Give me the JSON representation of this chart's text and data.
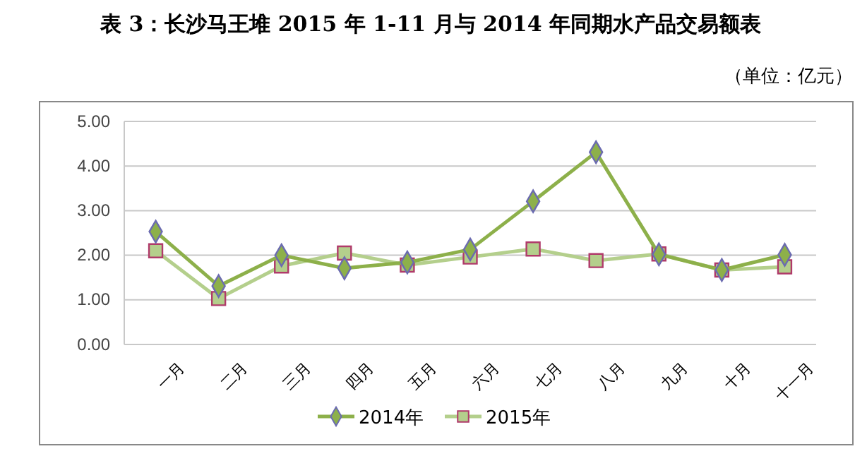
{
  "chart_data": {
    "type": "line",
    "title": "表 3：长沙马王堆 2015 年 1-11 月与 2014 年同期水产品交易额表",
    "subtitle": "（单位：亿元）",
    "categories": [
      "一月",
      "二月",
      "三月",
      "四月",
      "五月",
      "六月",
      "七月",
      "八月",
      "九月",
      "十月",
      "十一月"
    ],
    "series": [
      {
        "name": "2014年",
        "color": "#8db04a",
        "marker": "diamond",
        "values": [
          2.53,
          1.31,
          2.0,
          1.71,
          1.84,
          2.13,
          3.21,
          4.31,
          2.02,
          1.67,
          2.01
        ]
      },
      {
        "name": "2015年",
        "color": "#b4cf8c",
        "marker": "square",
        "values": [
          2.1,
          1.03,
          1.76,
          2.05,
          1.78,
          1.96,
          2.14,
          1.88,
          2.03,
          1.67,
          1.74
        ]
      }
    ],
    "ylim": [
      0,
      5
    ],
    "yticks": [
      {
        "value": 0,
        "label": "0.00"
      },
      {
        "value": 1,
        "label": "1.00"
      },
      {
        "value": 2,
        "label": "2.00"
      },
      {
        "value": 3,
        "label": "3.00"
      },
      {
        "value": 4,
        "label": "4.00"
      },
      {
        "value": 5,
        "label": "5.00"
      }
    ],
    "grid": "y",
    "legend": "bottom",
    "line_style": "solid"
  }
}
